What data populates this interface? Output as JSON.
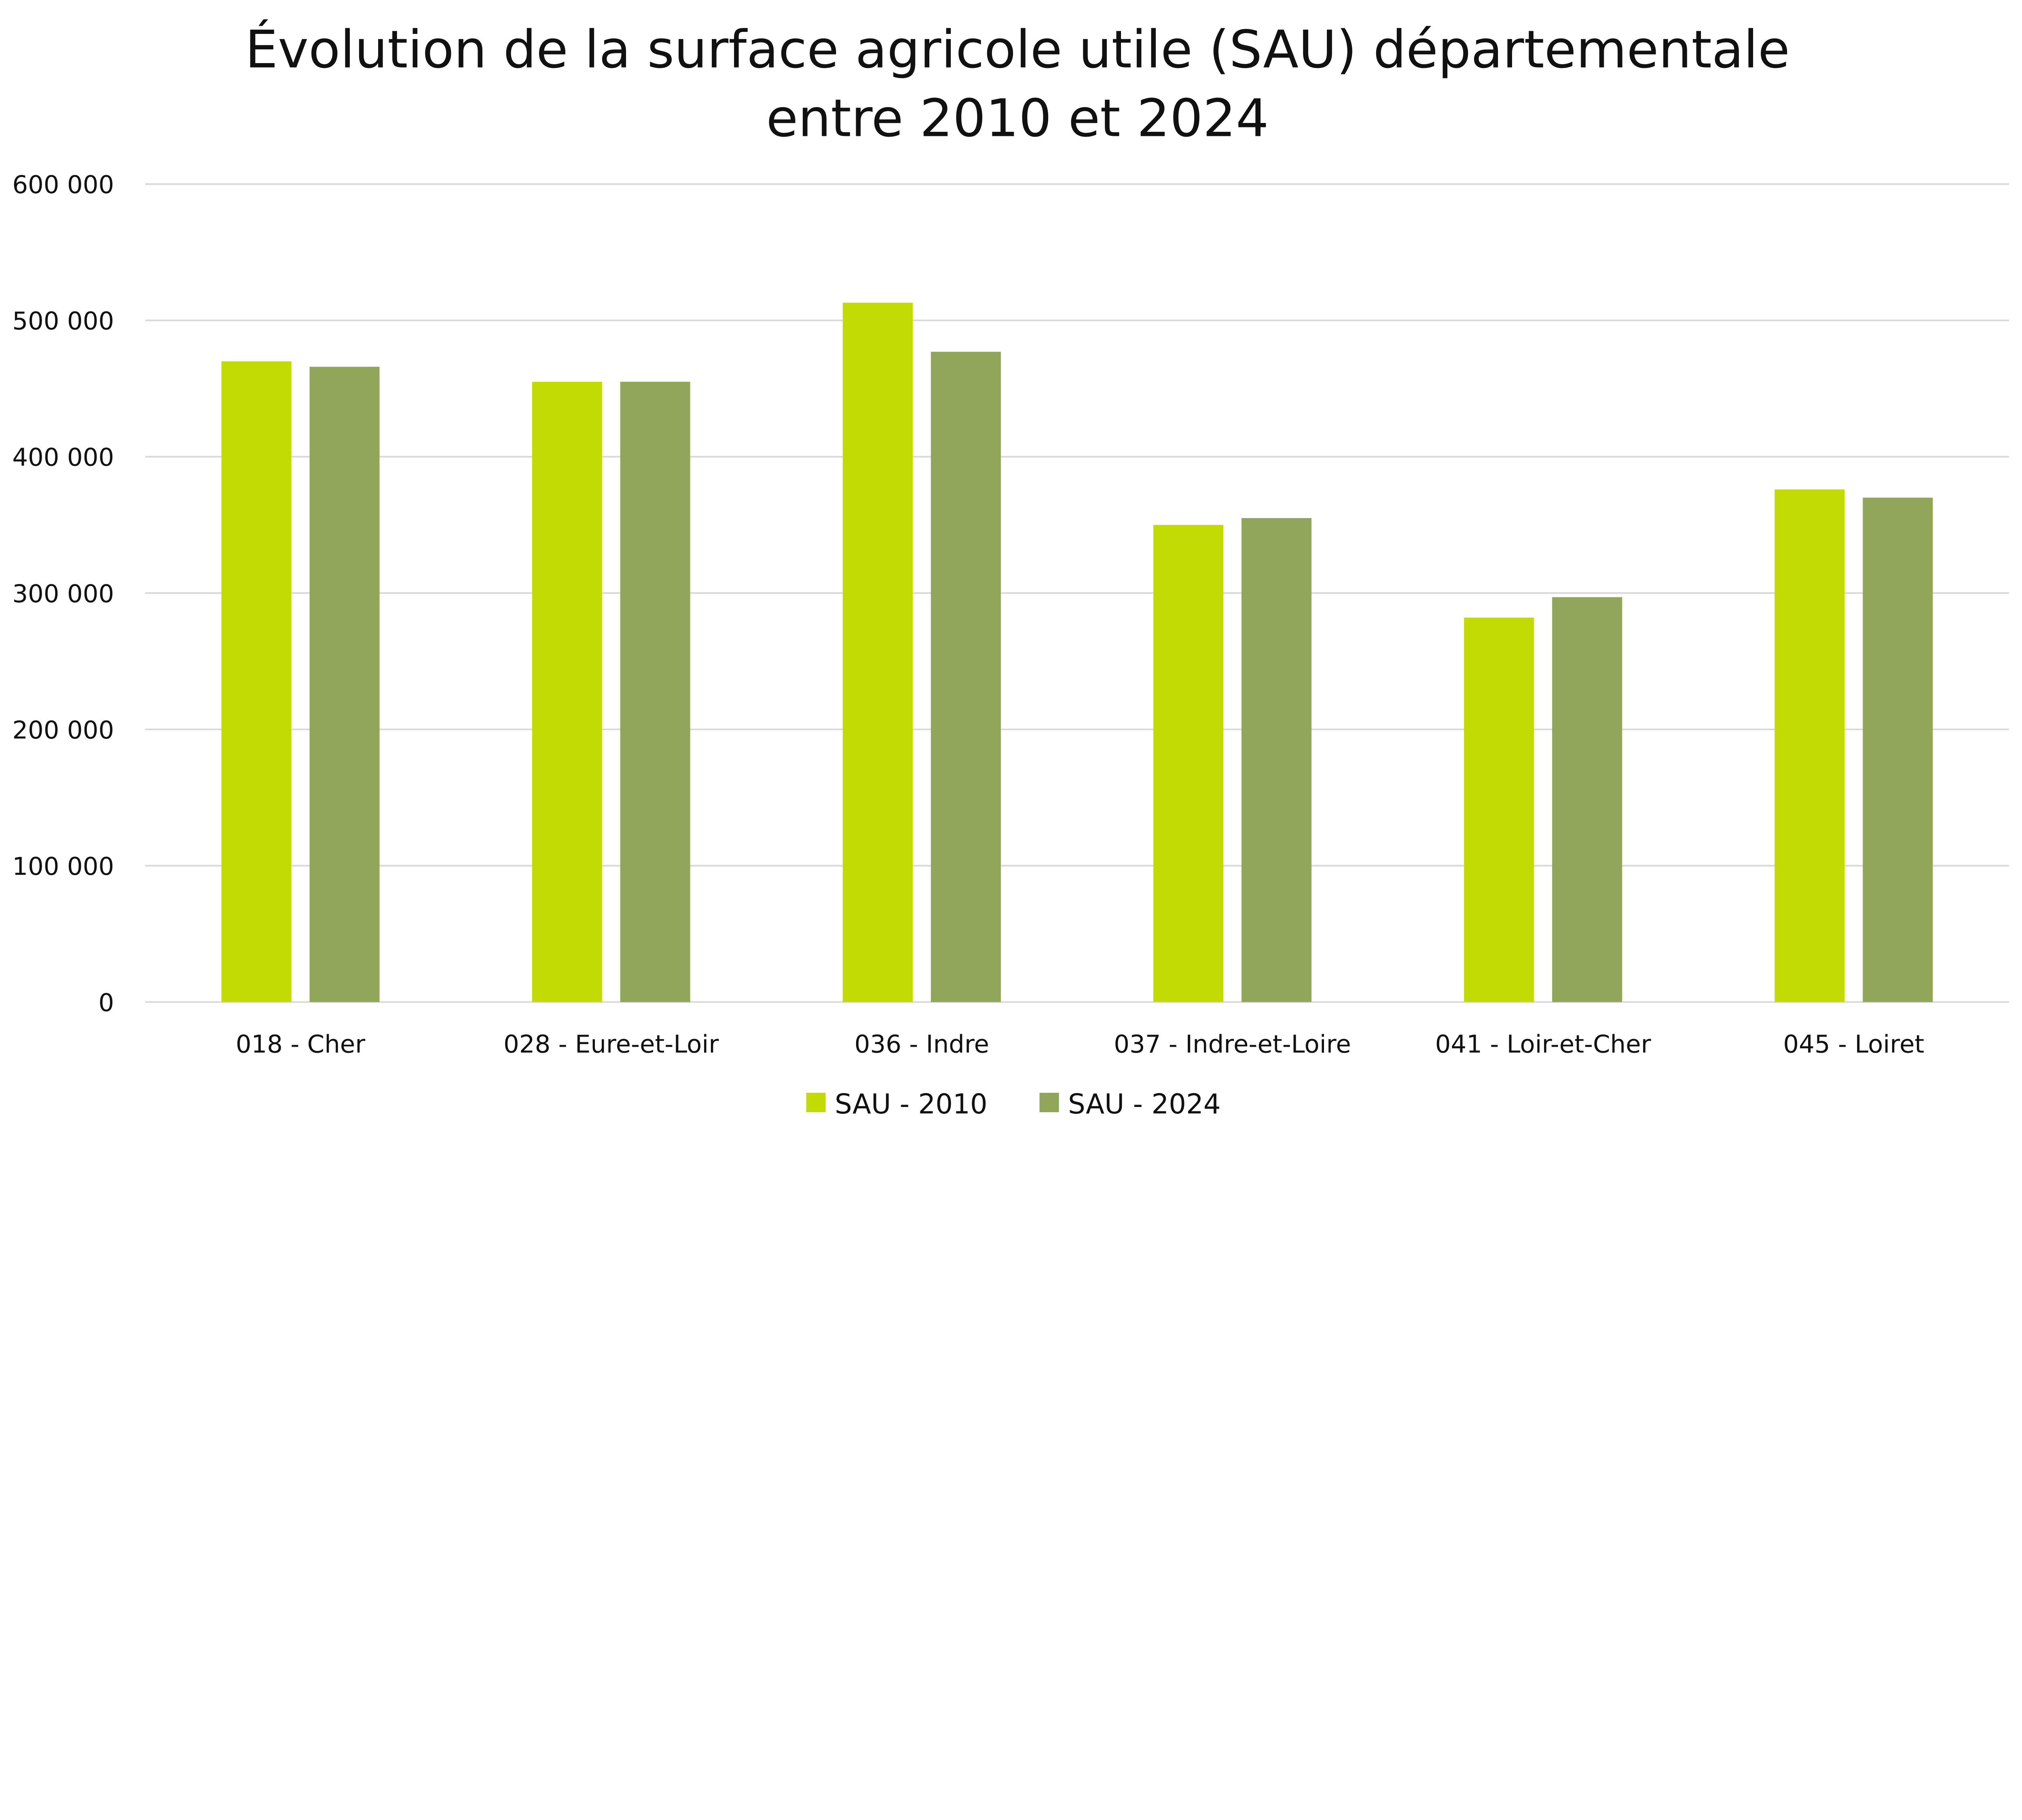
{
  "chart_data": {
    "type": "bar",
    "title": [
      "Évolution de la surface agricole utile (SAU) départementale",
      "entre 2010 et 2024"
    ],
    "xlabel": "",
    "ylabel": "",
    "ylim": [
      0,
      600000
    ],
    "yticks": [
      0,
      100000,
      200000,
      300000,
      400000,
      500000,
      600000
    ],
    "ytick_labels": [
      "0",
      "100 000",
      "200 000",
      "300 000",
      "400 000",
      "500 000",
      "600 000"
    ],
    "grid": true,
    "legend_position": "bottom",
    "categories": [
      "018 - Cher",
      "028 - Eure-et-Loir",
      "036 - Indre",
      "037 - Indre-et-Loire",
      "041 - Loir-et-Cher",
      "045 - Loiret"
    ],
    "series": [
      {
        "name": "SAU - 2010",
        "color": "#C2DB04",
        "values": [
          470000,
          455000,
          513000,
          350000,
          282000,
          376000
        ]
      },
      {
        "name": "SAU - 2024",
        "color": "#91A65A",
        "values": [
          466000,
          455000,
          477000,
          355000,
          297000,
          370000
        ]
      }
    ]
  }
}
